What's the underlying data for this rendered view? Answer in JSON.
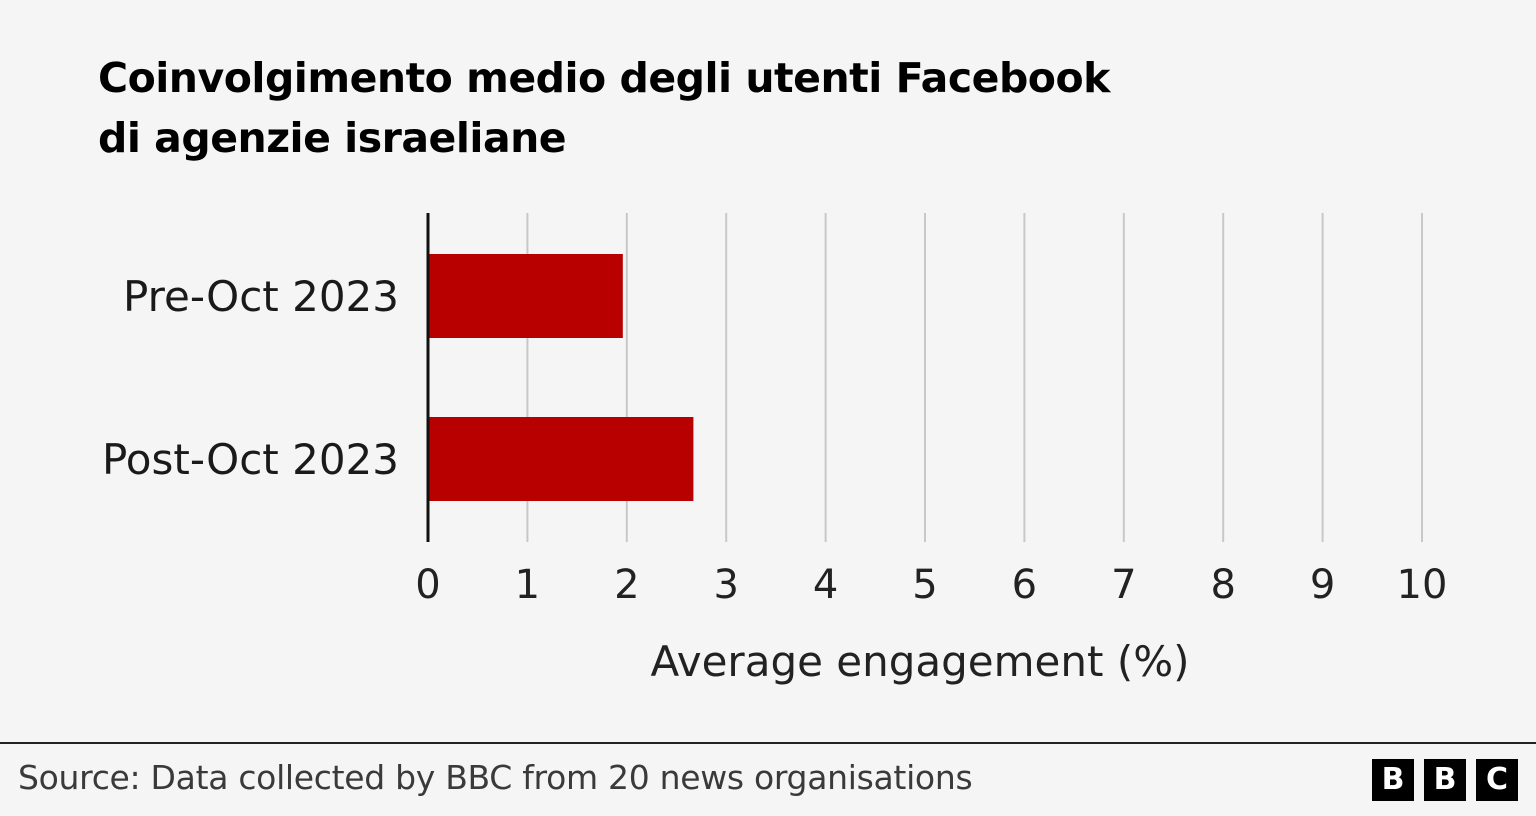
{
  "chart_data": {
    "type": "bar",
    "orientation": "horizontal",
    "title_lines": [
      "Coinvolgimento medio degli utenti Facebook",
      "di agenzie israeliane"
    ],
    "categories": [
      "Pre-Oct 2023",
      "Post-Oct 2023"
    ],
    "values": [
      1.96,
      2.67
    ],
    "xlabel": "Average engagement (%)",
    "xlim": [
      0,
      10
    ],
    "xticks": [
      "0",
      "1",
      "2",
      "3",
      "4",
      "5",
      "6",
      "7",
      "8",
      "9",
      "10"
    ],
    "grid": "vertical",
    "bar_color": "#b80000"
  },
  "footer": {
    "source": "Source: Data collected by BBC from 20 news organisations",
    "logo_letters": [
      "B",
      "B",
      "C"
    ]
  }
}
